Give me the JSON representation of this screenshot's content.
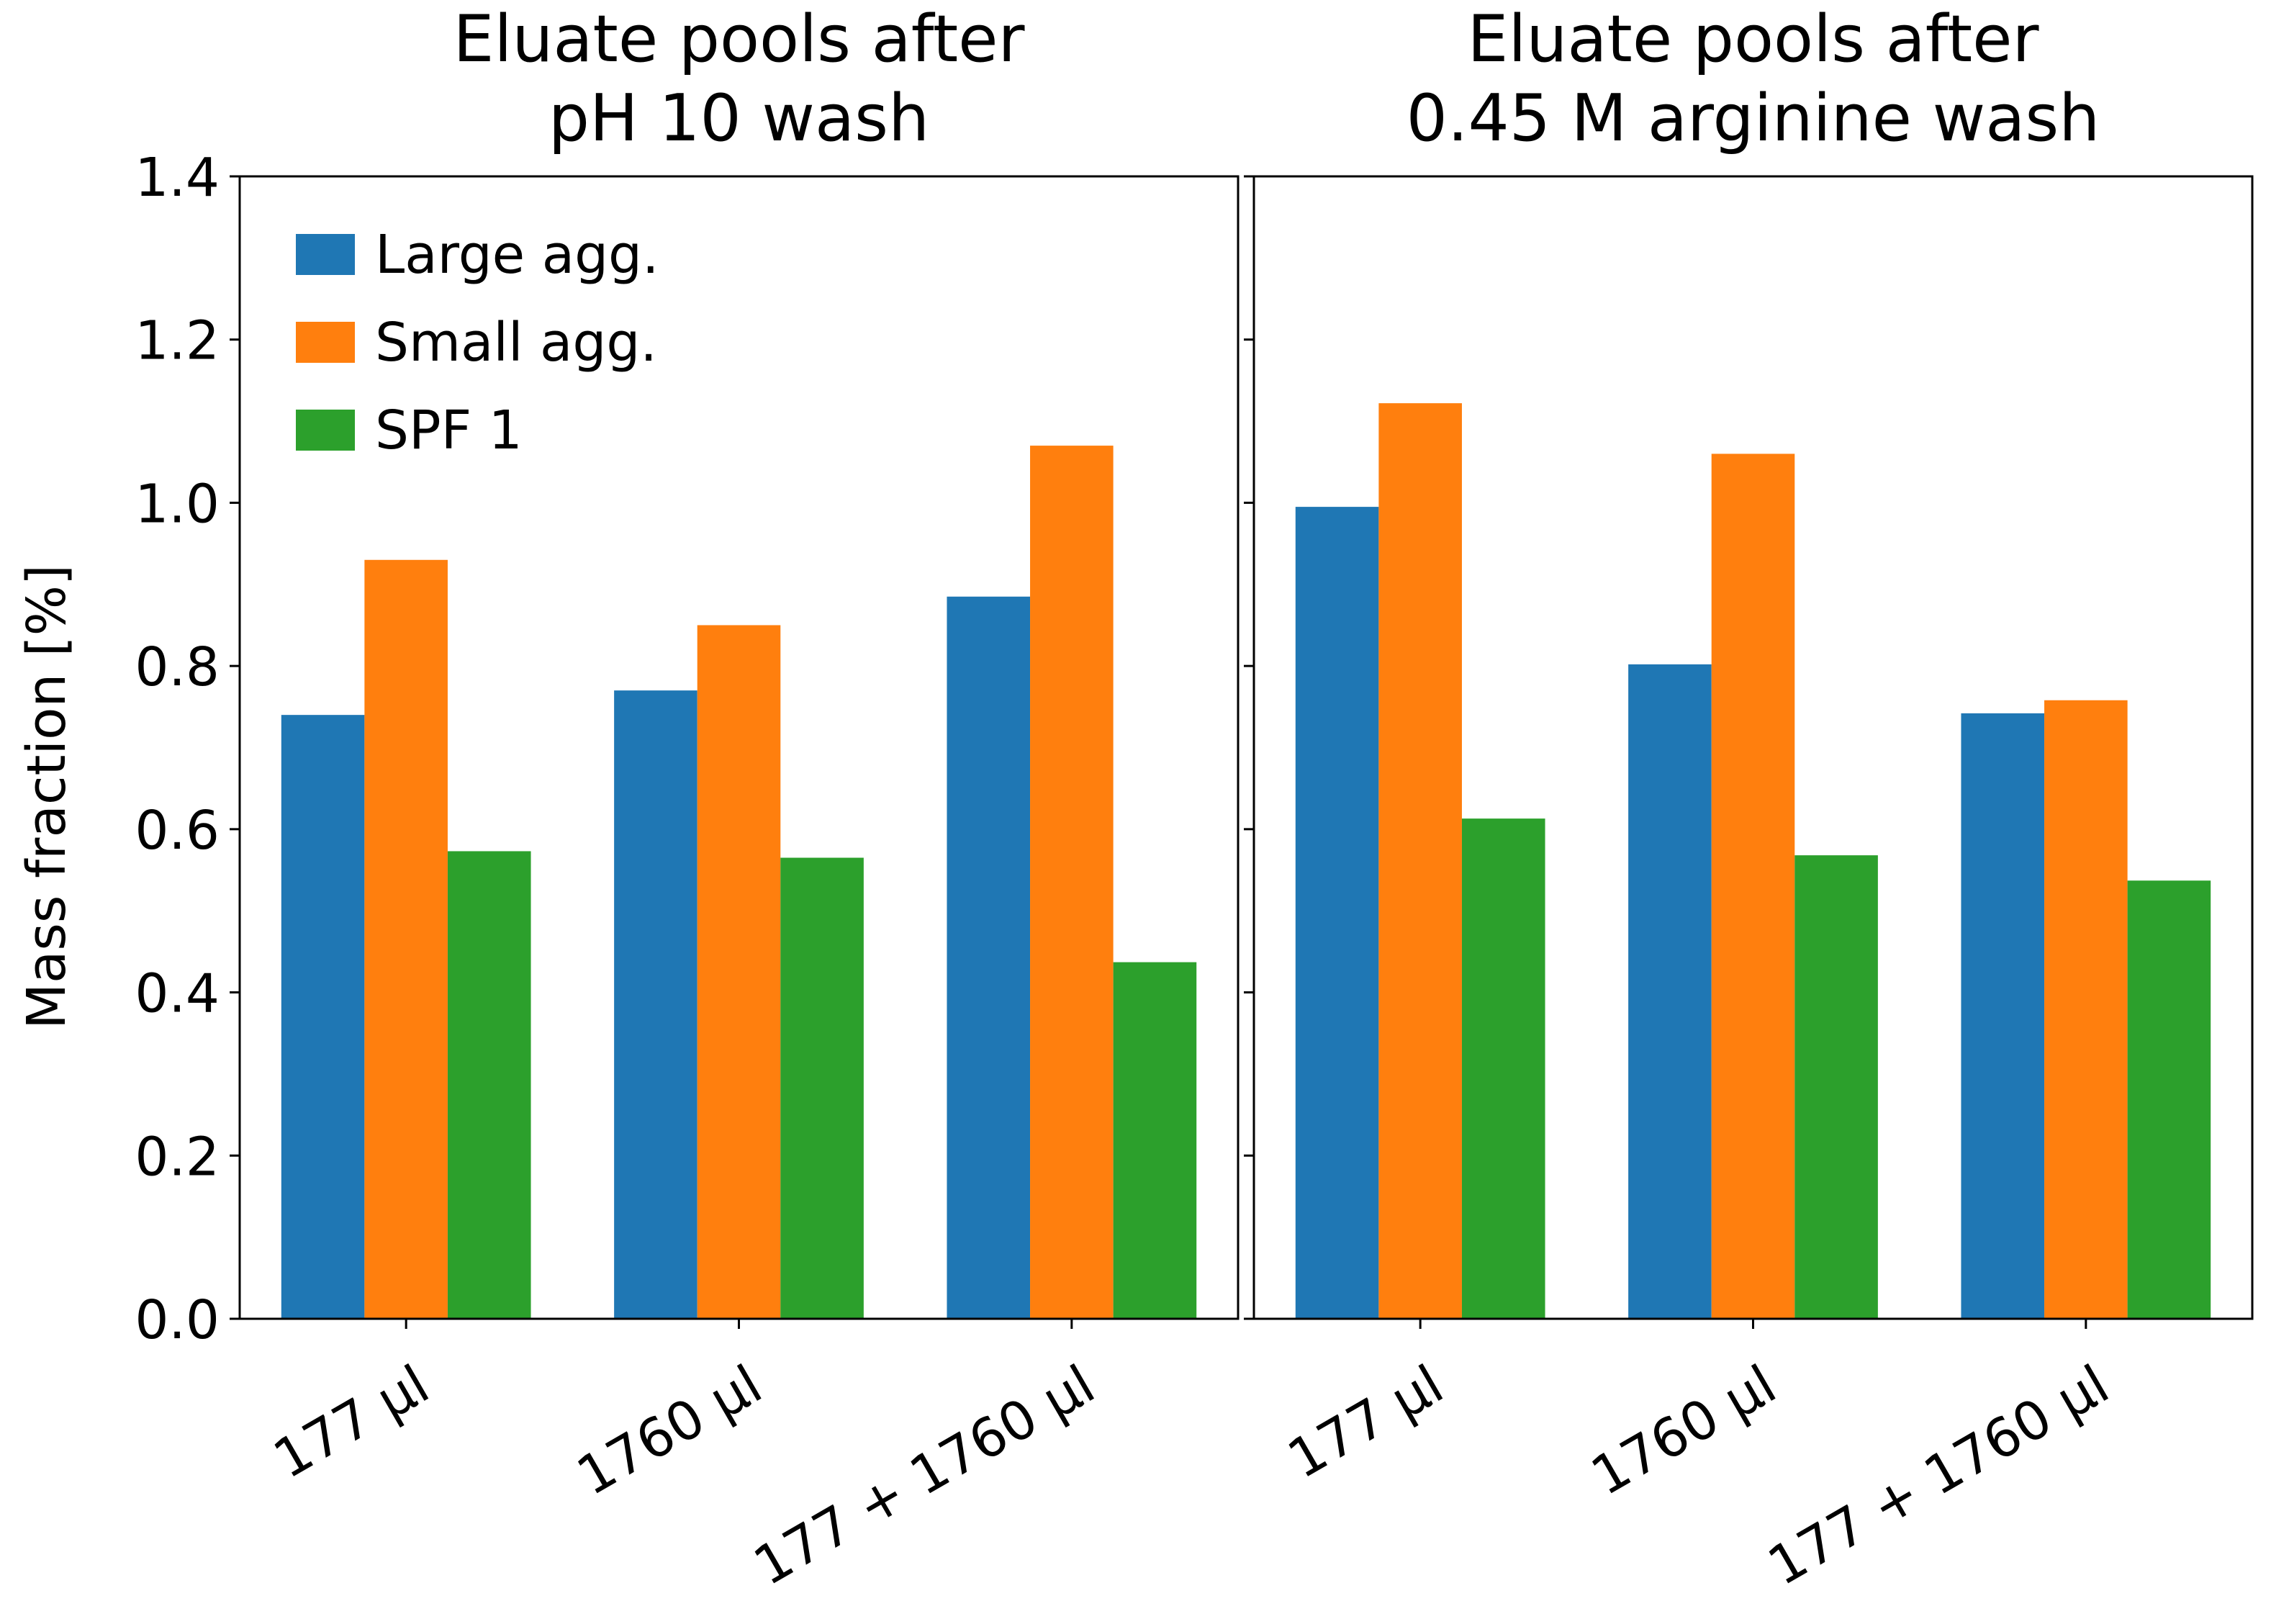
{
  "chart_data": [
    {
      "type": "bar",
      "title_lines": [
        "Eluate pools after",
        "pH 10 wash"
      ],
      "categories": [
        "177 μl",
        "1760 μl",
        "177 + 1760 μl"
      ],
      "series": [
        {
          "name": "Large agg.",
          "color": "#1f77b4",
          "values": [
            0.74,
            0.77,
            0.885
          ]
        },
        {
          "name": "Small agg.",
          "color": "#ff7f0e",
          "values": [
            0.93,
            0.85,
            1.07
          ]
        },
        {
          "name": "SPF 1",
          "color": "#2ca02c",
          "values": [
            0.573,
            0.565,
            0.437
          ]
        }
      ],
      "ylabel": "Mass fraction [%]",
      "ylim": [
        0,
        1.4
      ],
      "yticks": [
        "0.0",
        "0.2",
        "0.4",
        "0.6",
        "0.8",
        "1.0",
        "1.2",
        "1.4"
      ],
      "legend": "upper-left",
      "grid": false
    },
    {
      "type": "bar",
      "title_lines": [
        "Eluate pools after",
        "0.45 M arginine wash"
      ],
      "categories": [
        "177 μl",
        "1760 μl",
        "177 + 1760 μl"
      ],
      "series": [
        {
          "name": "Large agg.",
          "color": "#1f77b4",
          "values": [
            0.995,
            0.802,
            0.742
          ]
        },
        {
          "name": "Small agg.",
          "color": "#ff7f0e",
          "values": [
            1.122,
            1.06,
            0.758
          ]
        },
        {
          "name": "SPF 1",
          "color": "#2ca02c",
          "values": [
            0.613,
            0.568,
            0.537
          ]
        }
      ],
      "ylim": [
        0,
        1.4
      ],
      "sharey": true,
      "grid": false
    }
  ]
}
